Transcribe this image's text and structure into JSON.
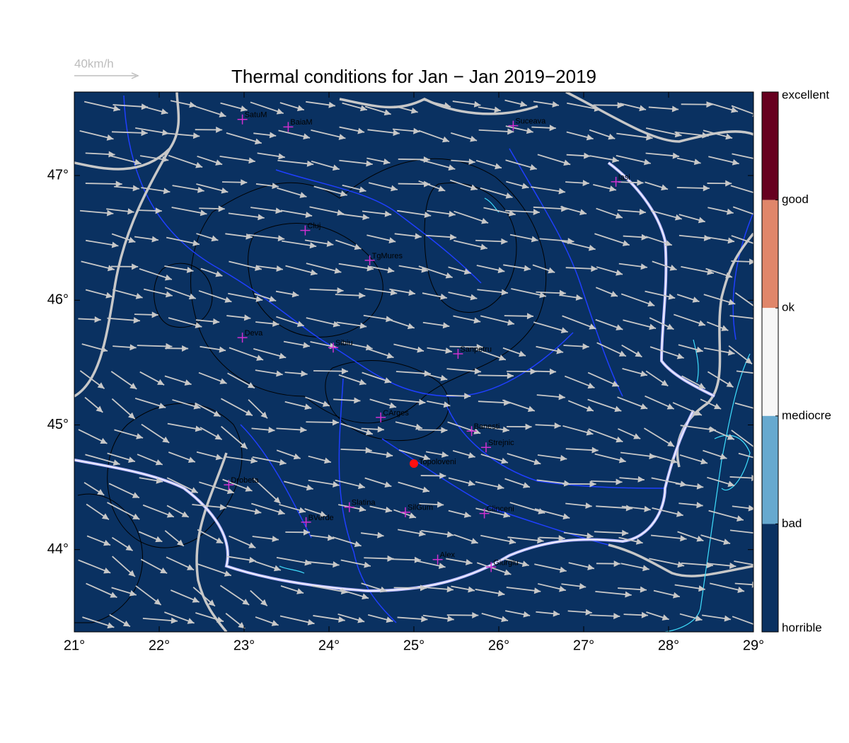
{
  "map": {
    "title": "Thermal conditions for Jan − Jan  2019−2019",
    "wind_scale": "40km/h",
    "lonlim": [
      21,
      29
    ],
    "latlim": [
      43.34,
      47.67
    ],
    "lon_ticks": [
      {
        "value": 21,
        "label": "21°"
      },
      {
        "value": 22,
        "label": "22°"
      },
      {
        "value": 23,
        "label": "23°"
      },
      {
        "value": 24,
        "label": "24°"
      },
      {
        "value": 25,
        "label": "25°"
      },
      {
        "value": 26,
        "label": "26°"
      },
      {
        "value": 27,
        "label": "27°"
      },
      {
        "value": 28,
        "label": "28°"
      },
      {
        "value": 29,
        "label": "29°"
      }
    ],
    "lat_ticks": [
      {
        "value": 44,
        "label": "44°"
      },
      {
        "value": 45,
        "label": "45°"
      },
      {
        "value": 46,
        "label": "46°"
      },
      {
        "value": 47,
        "label": "47°"
      }
    ],
    "cities": [
      {
        "name": "SatuM",
        "lon": 22.98,
        "lat": 47.45
      },
      {
        "name": "BaiaM",
        "lon": 23.52,
        "lat": 47.39
      },
      {
        "name": "Suceava",
        "lon": 26.17,
        "lat": 47.4
      },
      {
        "name": "Iasi",
        "lon": 27.38,
        "lat": 46.95
      },
      {
        "name": "Cluj",
        "lon": 23.72,
        "lat": 46.56
      },
      {
        "name": "TgMures",
        "lon": 24.48,
        "lat": 46.32
      },
      {
        "name": "Deva",
        "lon": 22.98,
        "lat": 45.7
      },
      {
        "name": "Sibiu",
        "lon": 24.05,
        "lat": 45.62
      },
      {
        "name": "Sanpetru",
        "lon": 25.52,
        "lat": 45.57
      },
      {
        "name": "CArges",
        "lon": 24.61,
        "lat": 45.06
      },
      {
        "name": "Banesti",
        "lon": 25.68,
        "lat": 44.95
      },
      {
        "name": "Strejnic",
        "lon": 25.85,
        "lat": 44.82
      },
      {
        "name": "Drobeta",
        "lon": 22.82,
        "lat": 44.52
      },
      {
        "name": "Slatina",
        "lon": 24.24,
        "lat": 44.34
      },
      {
        "name": "SilGum",
        "lon": 24.9,
        "lat": 44.3
      },
      {
        "name": "Clinceni",
        "lon": 25.83,
        "lat": 44.29
      },
      {
        "name": "BVerde",
        "lon": 23.73,
        "lat": 44.22
      },
      {
        "name": "Alex",
        "lon": 25.28,
        "lat": 43.92
      },
      {
        "name": "Giurgiu",
        "lon": 25.91,
        "lat": 43.86
      }
    ],
    "site": {
      "name": "Topoloveni",
      "lon": 25.0,
      "lat": 44.69
    },
    "colorbar": {
      "labels": [
        "excellent",
        "good",
        "ok",
        "mediocre",
        "bad",
        "horrible"
      ],
      "colors": [
        "#67001f",
        "#e0866a",
        "#f7f7f7",
        "#67a9cf",
        "#0a3161"
      ]
    }
  }
}
